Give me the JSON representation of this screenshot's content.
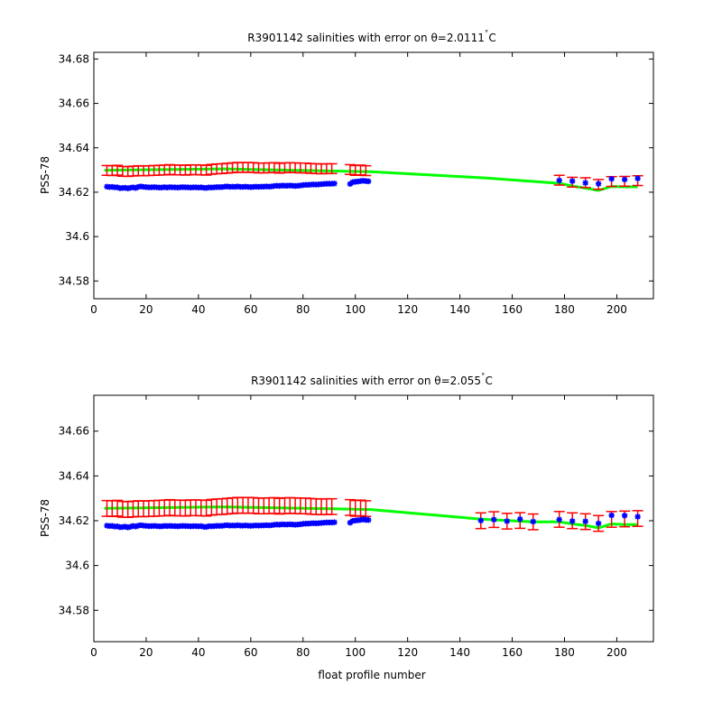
{
  "chart_data": [
    {
      "type": "scatter",
      "title": "R3901142 salinities with error on θ=2.0111˚C",
      "title_main": "R3901142 salinities with error on ",
      "title_theta": "θ",
      "title_value": "=2.0111",
      "title_deg": "˚",
      "title_unit": "C",
      "xlabel": "",
      "ylabel": "PSS-78",
      "xlim": [
        0,
        214
      ],
      "ylim": [
        34.572,
        34.683
      ],
      "xticks": [
        0,
        20,
        40,
        60,
        80,
        100,
        120,
        140,
        160,
        180,
        200
      ],
      "yticks": [
        34.58,
        34.6,
        34.62,
        34.64,
        34.66,
        34.68
      ],
      "ytick_labels": [
        "34.58",
        "34.6",
        "34.62",
        "34.64",
        "34.66",
        "34.68"
      ],
      "colors": {
        "float": "#0000ff",
        "mapped": "#ff0000",
        "fit": "#00ff00"
      },
      "float_salinity": {
        "x": [
          5,
          6,
          7,
          8,
          9,
          10,
          11,
          12,
          13,
          14,
          15,
          16,
          17,
          18,
          19,
          20,
          21,
          22,
          23,
          24,
          25,
          26,
          27,
          28,
          29,
          30,
          31,
          32,
          33,
          34,
          35,
          36,
          37,
          38,
          39,
          40,
          41,
          42,
          43,
          44,
          45,
          46,
          47,
          48,
          49,
          50,
          51,
          52,
          53,
          54,
          55,
          56,
          57,
          58,
          59,
          60,
          61,
          62,
          63,
          64,
          65,
          66,
          67,
          68,
          69,
          70,
          71,
          72,
          73,
          74,
          75,
          76,
          77,
          78,
          79,
          80,
          81,
          82,
          83,
          84,
          85,
          86,
          87,
          88,
          89,
          90,
          91,
          92,
          98,
          99,
          100,
          101,
          102,
          103,
          104,
          105,
          178,
          183,
          188,
          193,
          198,
          203,
          208
        ],
        "y": [
          34.6225,
          34.6223,
          34.6224,
          34.6222,
          34.6222,
          34.6218,
          34.6219,
          34.622,
          34.6217,
          34.622,
          34.6222,
          34.6219,
          34.6224,
          34.6226,
          34.6224,
          34.6223,
          34.6222,
          34.6222,
          34.6223,
          34.6222,
          34.6221,
          34.6221,
          34.6223,
          34.6221,
          34.6223,
          34.6222,
          34.6222,
          34.6221,
          34.6222,
          34.6223,
          34.6222,
          34.6222,
          34.6221,
          34.6222,
          34.6222,
          34.6221,
          34.6222,
          34.622,
          34.6219,
          34.6222,
          34.6221,
          34.6222,
          34.6223,
          34.6223,
          34.6223,
          34.6225,
          34.6226,
          34.6224,
          34.6225,
          34.6224,
          34.6226,
          34.6224,
          34.6224,
          34.6225,
          34.6224,
          34.6223,
          34.6224,
          34.6225,
          34.6224,
          34.6225,
          34.6225,
          34.6226,
          34.6225,
          34.6226,
          34.6228,
          34.6229,
          34.6228,
          34.623,
          34.6229,
          34.6229,
          34.623,
          34.6229,
          34.6228,
          34.6229,
          34.623,
          34.6232,
          34.6233,
          34.6233,
          34.6234,
          34.6235,
          34.6234,
          34.6235,
          34.6236,
          34.6237,
          34.6238,
          34.6238,
          34.6238,
          34.6239,
          34.6237,
          34.6245,
          34.6247,
          34.6248,
          34.625,
          34.6252,
          34.625,
          34.6249,
          34.6253,
          34.625,
          34.6242,
          34.6238,
          34.626,
          34.6257,
          34.6262
        ]
      },
      "mapped_salinity": {
        "x": [
          5,
          7,
          9,
          11,
          13,
          15,
          17,
          19,
          21,
          23,
          25,
          27,
          29,
          31,
          33,
          35,
          37,
          39,
          41,
          43,
          45,
          47,
          49,
          51,
          53,
          55,
          57,
          59,
          61,
          63,
          65,
          67,
          69,
          71,
          73,
          75,
          77,
          79,
          81,
          83,
          85,
          87,
          89,
          91,
          98,
          100,
          102,
          104,
          178,
          183,
          188,
          193,
          198,
          203,
          208
        ],
        "y": [
          34.6298,
          34.6297,
          34.6299,
          34.6294,
          34.6293,
          34.6295,
          34.6297,
          34.6296,
          34.6297,
          34.6298,
          34.6299,
          34.63,
          34.6302,
          34.63,
          34.63,
          34.6299,
          34.6301,
          34.6301,
          34.63,
          34.6299,
          34.6303,
          34.6305,
          34.6306,
          34.6308,
          34.631,
          34.6312,
          34.6311,
          34.6312,
          34.6311,
          34.6309,
          34.6309,
          34.631,
          34.6311,
          34.6308,
          34.631,
          34.6311,
          34.631,
          34.6309,
          34.6309,
          34.6307,
          34.6306,
          34.6305,
          34.6306,
          34.6306,
          34.6302,
          34.6298,
          34.63,
          34.6297,
          34.6254,
          34.6245,
          34.6243,
          34.6235,
          34.6248,
          34.6249,
          34.6252
        ],
        "error": 0.0022
      },
      "fit_line": {
        "x": [
          4,
          50,
          106,
          150,
          178,
          183,
          188,
          193,
          198,
          203,
          208
        ],
        "y": [
          34.6299,
          34.6305,
          34.6292,
          34.6264,
          34.624,
          34.6228,
          34.6218,
          34.6208,
          34.6226,
          34.6224,
          34.6224
        ]
      }
    },
    {
      "type": "scatter",
      "title": "R3901142 salinities with error on θ=2.055˚C",
      "title_main": "R3901142 salinities with error on ",
      "title_theta": "θ",
      "title_value": "=2.055",
      "title_deg": "˚",
      "title_unit": "C",
      "xlabel": "float profile number",
      "ylabel": "PSS-78",
      "xlim": [
        0,
        214
      ],
      "ylim": [
        34.566,
        34.676
      ],
      "xticks": [
        0,
        20,
        40,
        60,
        80,
        100,
        120,
        140,
        160,
        180,
        200
      ],
      "yticks": [
        34.58,
        34.6,
        34.62,
        34.64,
        34.66
      ],
      "ytick_labels": [
        "34.58",
        "34.6",
        "34.62",
        "34.64",
        "34.66"
      ],
      "colors": {
        "float": "#0000ff",
        "mapped": "#ff0000",
        "fit": "#00ff00"
      },
      "float_salinity": {
        "x": [
          5,
          6,
          7,
          8,
          9,
          10,
          11,
          12,
          13,
          14,
          15,
          16,
          17,
          18,
          19,
          20,
          21,
          22,
          23,
          24,
          25,
          26,
          27,
          28,
          29,
          30,
          31,
          32,
          33,
          34,
          35,
          36,
          37,
          38,
          39,
          40,
          41,
          42,
          43,
          44,
          45,
          46,
          47,
          48,
          49,
          50,
          51,
          52,
          53,
          54,
          55,
          56,
          57,
          58,
          59,
          60,
          61,
          62,
          63,
          64,
          65,
          66,
          67,
          68,
          69,
          70,
          71,
          72,
          73,
          74,
          75,
          76,
          77,
          78,
          79,
          80,
          81,
          82,
          83,
          84,
          85,
          86,
          87,
          88,
          89,
          90,
          91,
          92,
          98,
          99,
          100,
          101,
          102,
          103,
          104,
          105,
          148,
          153,
          158,
          163,
          168,
          178,
          183,
          188,
          193,
          198,
          203,
          208
        ],
        "y": [
          34.6178,
          34.6176,
          34.6177,
          34.6174,
          34.6175,
          34.6171,
          34.6172,
          34.6174,
          34.617,
          34.6173,
          34.6177,
          34.6174,
          34.6178,
          34.618,
          34.6178,
          34.6177,
          34.6176,
          34.6176,
          34.6177,
          34.6176,
          34.6175,
          34.6175,
          34.6177,
          34.6176,
          34.6177,
          34.6176,
          34.6176,
          34.6175,
          34.6176,
          34.6177,
          34.6176,
          34.6176,
          34.6175,
          34.6176,
          34.6176,
          34.6175,
          34.6176,
          34.6173,
          34.6172,
          34.6176,
          34.6175,
          34.6176,
          34.6177,
          34.6177,
          34.6177,
          34.6179,
          34.618,
          34.6178,
          34.6179,
          34.6178,
          34.618,
          34.6178,
          34.6178,
          34.6179,
          34.6178,
          34.6177,
          34.6178,
          34.6179,
          34.6178,
          34.6179,
          34.6179,
          34.618,
          34.6179,
          34.618,
          34.6182,
          34.6183,
          34.6182,
          34.6184,
          34.6183,
          34.6183,
          34.6184,
          34.6183,
          34.6182,
          34.6183,
          34.6184,
          34.6186,
          34.6187,
          34.6187,
          34.6188,
          34.6189,
          34.6188,
          34.6189,
          34.619,
          34.6191,
          34.6192,
          34.6192,
          34.6192,
          34.6193,
          34.6191,
          34.6199,
          34.6201,
          34.6202,
          34.6204,
          34.6206,
          34.6204,
          34.6203,
          34.6201,
          34.6205,
          34.6198,
          34.6207,
          34.6196,
          34.6205,
          34.6198,
          34.6197,
          34.6188,
          34.6224,
          34.6223,
          34.6218
        ]
      },
      "mapped_salinity": {
        "x": [
          5,
          7,
          9,
          11,
          13,
          15,
          17,
          19,
          21,
          23,
          25,
          27,
          29,
          31,
          33,
          35,
          37,
          39,
          41,
          43,
          45,
          47,
          49,
          51,
          53,
          55,
          57,
          59,
          61,
          63,
          65,
          67,
          69,
          71,
          73,
          75,
          77,
          79,
          81,
          83,
          85,
          87,
          89,
          91,
          98,
          100,
          102,
          104,
          148,
          153,
          158,
          163,
          168,
          178,
          183,
          188,
          193,
          198,
          203,
          208
        ],
        "y": [
          34.6255,
          34.6254,
          34.6256,
          34.6251,
          34.625,
          34.6252,
          34.6254,
          34.6253,
          34.6254,
          34.6255,
          34.6256,
          34.6257,
          34.6259,
          34.6257,
          34.6257,
          34.6256,
          34.6258,
          34.6258,
          34.6257,
          34.6256,
          34.626,
          34.6262,
          34.6263,
          34.6265,
          34.6267,
          34.6269,
          34.6268,
          34.6269,
          34.6268,
          34.6266,
          34.6266,
          34.6267,
          34.6268,
          34.6265,
          34.6267,
          34.6268,
          34.6267,
          34.6266,
          34.6266,
          34.6264,
          34.6263,
          34.6262,
          34.6263,
          34.6263,
          34.6259,
          34.6255,
          34.6257,
          34.6254,
          34.62,
          34.6205,
          34.6198,
          34.6201,
          34.6195,
          34.6206,
          34.62,
          34.6196,
          34.6188,
          34.6206,
          34.6208,
          34.621
        ],
        "error": 0.0035
      },
      "fit_line": {
        "x": [
          4,
          50,
          106,
          148,
          168,
          178,
          183,
          188,
          193,
          198,
          203,
          208
        ],
        "y": [
          34.6255,
          34.6262,
          34.625,
          34.6207,
          34.6195,
          34.6195,
          34.6186,
          34.6179,
          34.6168,
          34.6186,
          34.6183,
          34.6183
        ]
      }
    }
  ]
}
